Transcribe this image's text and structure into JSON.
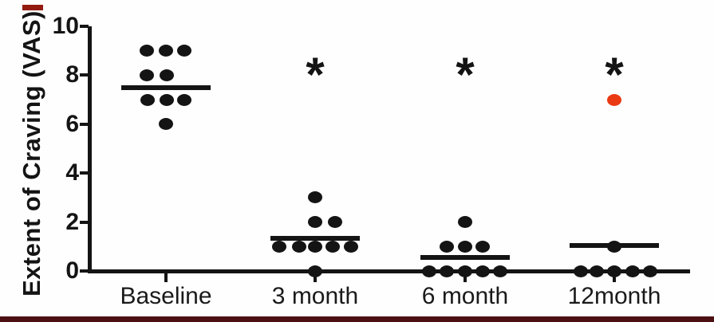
{
  "figure": {
    "top_left_dash_color": "#931b10",
    "bottom_bar_color": "#4d1013",
    "background_color": "#fefefe",
    "axis_color": "#141414"
  },
  "chart_data": {
    "type": "scatter",
    "title": "",
    "xlabel": "",
    "ylabel": "Extent of Craving (VAS)",
    "ylim": [
      0,
      10
    ],
    "yticks": [
      0,
      2,
      4,
      6,
      8,
      10
    ],
    "grid": false,
    "point_color": "#141414",
    "highlight_color": "#ea3a14",
    "significance_marker": "*",
    "categories": [
      "Baseline",
      "3 month",
      "6 month",
      "12month"
    ],
    "groups": [
      {
        "label": "Baseline",
        "significance": "",
        "mean_line": 7.5,
        "points": [
          {
            "v": 9,
            "dx": -24
          },
          {
            "v": 9,
            "dx": 0
          },
          {
            "v": 9,
            "dx": 23
          },
          {
            "v": 8,
            "dx": -24
          },
          {
            "v": 8,
            "dx": 1
          },
          {
            "v": 7,
            "dx": -23
          },
          {
            "v": 7,
            "dx": 1
          },
          {
            "v": 7,
            "dx": 23
          },
          {
            "v": 6,
            "dx": 0
          }
        ]
      },
      {
        "label": "3 month",
        "significance": "*",
        "mean_line": 1.35,
        "points": [
          {
            "v": 3,
            "dx": 0
          },
          {
            "v": 2,
            "dx": 0
          },
          {
            "v": 2,
            "dx": 25
          },
          {
            "v": 1,
            "dx": -45
          },
          {
            "v": 1,
            "dx": -20
          },
          {
            "v": 1,
            "dx": 0
          },
          {
            "v": 1,
            "dx": 22
          },
          {
            "v": 1,
            "dx": 45
          },
          {
            "v": 0,
            "dx": 0
          }
        ]
      },
      {
        "label": "6 month",
        "significance": "*",
        "mean_line": 0.55,
        "points": [
          {
            "v": 2,
            "dx": 0
          },
          {
            "v": 1,
            "dx": -23
          },
          {
            "v": 1,
            "dx": 0
          },
          {
            "v": 1,
            "dx": 22
          },
          {
            "v": 0,
            "dx": -45
          },
          {
            "v": 0,
            "dx": -23
          },
          {
            "v": 0,
            "dx": 0
          },
          {
            "v": 0,
            "dx": 22
          },
          {
            "v": 0,
            "dx": 44
          }
        ]
      },
      {
        "label": "12month",
        "significance": "*",
        "mean_line": 1.05,
        "points": [
          {
            "v": 7,
            "dx": 0,
            "color": "#ea3a14"
          },
          {
            "v": 1,
            "dx": 0
          },
          {
            "v": 0,
            "dx": -42
          },
          {
            "v": 0,
            "dx": -22
          },
          {
            "v": 0,
            "dx": 0
          },
          {
            "v": 0,
            "dx": 23
          },
          {
            "v": 0,
            "dx": 45
          }
        ]
      }
    ]
  }
}
